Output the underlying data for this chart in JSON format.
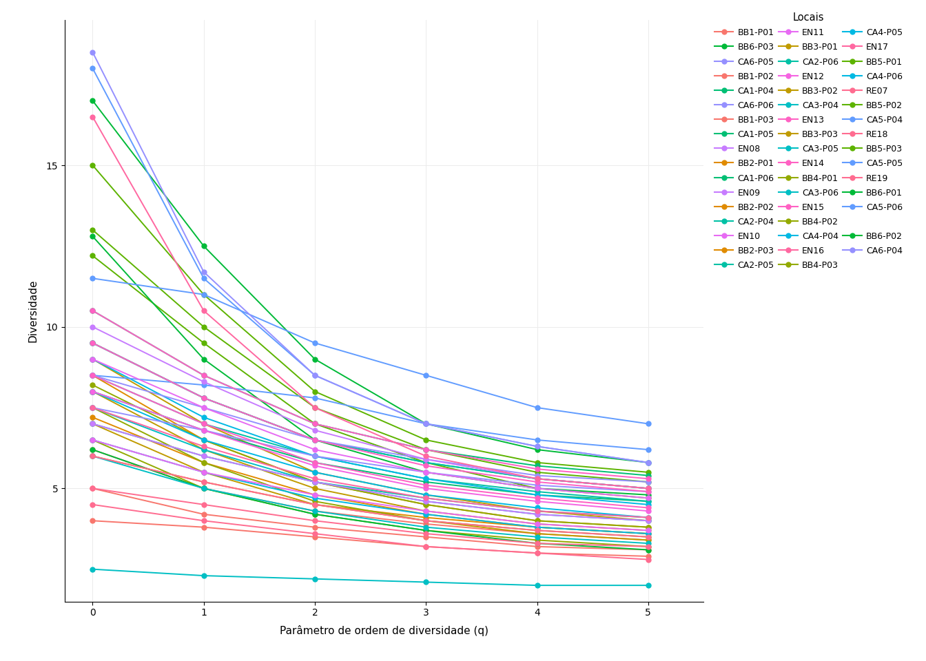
{
  "title": "",
  "xlabel": "Parâmetro de ordem de diversidade (q)",
  "ylabel": "Diversidade",
  "legend_title": "Locais",
  "x_values": [
    0,
    1,
    2,
    3,
    4,
    5
  ],
  "series": {
    "BB1-P01": {
      "color": "#F8766D",
      "values": [
        4.0,
        3.8,
        3.5,
        3.2,
        3.0,
        2.9
      ]
    },
    "BB1-P02": {
      "color": "#F67B6A",
      "values": [
        5.0,
        4.2,
        3.8,
        3.5,
        3.2,
        3.1
      ]
    },
    "BB1-P03": {
      "color": "#E88A6A",
      "values": [
        6.2,
        5.0,
        4.3,
        3.9,
        3.6,
        3.4
      ]
    },
    "BB2-P01": {
      "color": "#DC8B00",
      "values": [
        6.0,
        5.2,
        4.5,
        4.1,
        3.8,
        3.6
      ]
    },
    "BB2-P02": {
      "color": "#D08B00",
      "values": [
        7.2,
        5.8,
        4.8,
        4.2,
        3.8,
        3.6
      ]
    },
    "BB2-P03": {
      "color": "#C89000",
      "values": [
        8.5,
        6.5,
        5.2,
        4.5,
        4.0,
        3.8
      ]
    },
    "BB3-P01": {
      "color": "#BC9700",
      "values": [
        7.0,
        5.5,
        4.5,
        4.0,
        3.6,
        3.4
      ]
    },
    "BB3-P02": {
      "color": "#AE9B00",
      "values": [
        8.0,
        6.2,
        5.0,
        4.3,
        3.9,
        3.7
      ]
    },
    "BB3-P03": {
      "color": "#A09E00",
      "values": [
        9.0,
        7.0,
        5.5,
        4.8,
        4.3,
        4.0
      ]
    },
    "BB4-P01": {
      "color": "#8EA500",
      "values": [
        6.5,
        5.0,
        4.2,
        3.7,
        3.4,
        3.2
      ]
    },
    "BB4-P02": {
      "color": "#7CAA00",
      "values": [
        7.5,
        5.8,
        4.6,
        4.0,
        3.7,
        3.5
      ]
    },
    "BB4-P03": {
      "color": "#6AAF00",
      "values": [
        8.2,
        6.5,
        5.2,
        4.5,
        4.0,
        3.8
      ]
    },
    "BB5-P01": {
      "color": "#4DB400",
      "values": [
        12.2,
        9.5,
        7.0,
        5.8,
        5.0,
        4.7
      ]
    },
    "BB5-P02": {
      "color": "#35B800",
      "values": [
        13.0,
        10.0,
        7.5,
        6.2,
        5.5,
        5.2
      ]
    },
    "BB5-P03": {
      "color": "#1BBC00",
      "values": [
        15.0,
        11.0,
        8.0,
        6.5,
        5.8,
        5.5
      ]
    },
    "BB6-P01": {
      "color": "#00BA38",
      "values": [
        12.8,
        9.0,
        6.5,
        5.5,
        5.0,
        4.8
      ]
    },
    "BB6-P02": {
      "color": "#00BA20",
      "values": [
        17.0,
        12.5,
        9.0,
        7.0,
        6.2,
        5.8
      ]
    },
    "BB6-P03": {
      "color": "#00BA50",
      "values": [
        6.2,
        5.0,
        4.2,
        3.7,
        3.3,
        3.1
      ]
    },
    "CA1-P04": {
      "color": "#00BF74",
      "values": [
        8.0,
        6.8,
        5.8,
        5.2,
        4.8,
        4.6
      ]
    },
    "CA1-P05": {
      "color": "#00BF85",
      "values": [
        9.5,
        7.8,
        6.5,
        5.8,
        5.3,
        5.0
      ]
    },
    "CA1-P06": {
      "color": "#00BF95",
      "values": [
        10.5,
        8.5,
        7.0,
        6.2,
        5.7,
        5.4
      ]
    },
    "CA2-P04": {
      "color": "#00C1A5",
      "values": [
        7.0,
        6.0,
        5.2,
        4.7,
        4.3,
        4.1
      ]
    },
    "CA2-P05": {
      "color": "#00C1B0",
      "values": [
        8.5,
        7.0,
        6.0,
        5.3,
        4.9,
        4.6
      ]
    },
    "CA2-P06": {
      "color": "#00C1BB",
      "values": [
        9.5,
        7.8,
        6.5,
        5.8,
        5.3,
        5.0
      ]
    },
    "CA3-P04": {
      "color": "#00BFC4",
      "values": [
        2.5,
        2.3,
        2.2,
        2.1,
        2.0,
        2.0
      ]
    },
    "CA3-P05": {
      "color": "#00BCCD",
      "values": [
        6.0,
        5.0,
        4.3,
        3.8,
        3.5,
        3.3
      ]
    },
    "CA3-P06": {
      "color": "#00B9D8",
      "values": [
        7.5,
        6.2,
        5.2,
        4.6,
        4.2,
        4.0
      ]
    },
    "CA4-P04": {
      "color": "#00B5E0",
      "values": [
        6.5,
        5.5,
        4.7,
        4.2,
        3.8,
        3.6
      ]
    },
    "CA4-P05": {
      "color": "#00B0E8",
      "values": [
        8.0,
        6.5,
        5.5,
        4.8,
        4.4,
        4.1
      ]
    },
    "CA4-P06": {
      "color": "#00ABEE",
      "values": [
        9.0,
        7.2,
        6.0,
        5.3,
        4.8,
        4.5
      ]
    },
    "CA5-P04": {
      "color": "#35A5F5",
      "values": [
        8.5,
        8.2,
        7.8,
        7.0,
        6.5,
        6.2
      ]
    },
    "CA5-P05": {
      "color": "#619CFF",
      "values": [
        11.5,
        11.0,
        9.5,
        8.5,
        7.5,
        7.0
      ]
    },
    "CA5-P06": {
      "color": "#619CFF",
      "values": [
        18.0,
        11.5,
        8.5,
        7.0,
        6.3,
        5.8
      ]
    },
    "CA6-P04": {
      "color": "#9590FF",
      "values": [
        18.5,
        11.7,
        8.5,
        7.0,
        6.3,
        5.8
      ]
    },
    "CA6-P05": {
      "color": "#A08AFF",
      "values": [
        7.5,
        6.8,
        6.0,
        5.5,
        5.1,
        4.9
      ]
    },
    "CA6-P06": {
      "color": "#AB85FF",
      "values": [
        8.5,
        7.5,
        6.5,
        5.9,
        5.4,
        5.2
      ]
    },
    "EN08": {
      "color": "#C77CFF",
      "values": [
        10.0,
        8.3,
        6.8,
        5.9,
        5.3,
        5.0
      ]
    },
    "EN09": {
      "color": "#CC78FF",
      "values": [
        7.0,
        6.0,
        5.2,
        4.6,
        4.2,
        4.0
      ]
    },
    "EN10": {
      "color": "#D874F5",
      "values": [
        6.5,
        5.5,
        4.8,
        4.3,
        3.9,
        3.7
      ]
    },
    "EN11": {
      "color": "#E070EE",
      "values": [
        9.0,
        7.5,
        6.2,
        5.5,
        5.0,
        4.7
      ]
    },
    "EN12": {
      "color": "#E86CE5",
      "values": [
        8.0,
        6.8,
        5.7,
        5.0,
        4.6,
        4.3
      ]
    },
    "EN13": {
      "color": "#F068DA",
      "values": [
        8.5,
        7.0,
        5.8,
        5.1,
        4.7,
        4.4
      ]
    },
    "EN14": {
      "color": "#F564CF",
      "values": [
        9.5,
        7.8,
        6.5,
        5.7,
        5.2,
        4.9
      ]
    },
    "EN15": {
      "color": "#F860C4",
      "values": [
        10.5,
        8.5,
        7.0,
        6.2,
        5.6,
        5.3
      ]
    },
    "EN16": {
      "color": "#F85CB8",
      "values": [
        7.5,
        6.3,
        5.3,
        4.7,
        4.3,
        4.1
      ]
    },
    "EN17": {
      "color": "#F858AA",
      "values": [
        16.5,
        10.5,
        7.5,
        6.0,
        5.3,
        5.0
      ]
    },
    "RE07": {
      "color": "#F8549C",
      "values": [
        6.0,
        5.2,
        4.5,
        4.0,
        3.7,
        3.5
      ]
    },
    "RE18": {
      "color": "#F85090",
      "values": [
        5.0,
        4.5,
        4.0,
        3.6,
        3.3,
        3.2
      ]
    },
    "RE19": {
      "color": "#F84C84",
      "values": [
        4.5,
        4.0,
        3.6,
        3.2,
        3.0,
        2.8
      ]
    }
  },
  "legend_rows": [
    [
      "BB1-P01",
      "BB6-P03",
      "CA6-P05"
    ],
    [
      "BB1-P02",
      "CA1-P04",
      "CA6-P06"
    ],
    [
      "BB1-P03",
      "CA1-P05",
      "EN08"
    ],
    [
      "BB2-P01",
      "CA1-P06",
      "EN09"
    ],
    [
      "BB2-P02",
      "CA2-P04",
      "EN10"
    ],
    [
      "BB2-P03",
      "CA2-P05",
      "EN11"
    ],
    [
      "BB3-P01",
      "CA2-P06",
      "EN12"
    ],
    [
      "BB3-P02",
      "CA3-P04",
      "EN13"
    ],
    [
      "BB3-P03",
      "CA3-P05",
      "EN14"
    ],
    [
      "BB4-P01",
      "CA3-P06",
      "EN15"
    ],
    [
      "BB4-P02",
      "CA4-P04",
      "EN16"
    ],
    [
      "BB4-P03",
      "CA4-P05",
      "EN17"
    ],
    [
      "BB5-P01",
      "CA4-P06",
      "RE07"
    ],
    [
      "BB5-P02",
      "CA5-P04",
      "RE18"
    ],
    [
      "BB5-P03",
      "CA5-P05",
      "RE19"
    ],
    [
      "BB6-P01",
      "CA5-P06",
      null
    ],
    [
      "BB6-P02",
      "CA6-P04",
      null
    ]
  ],
  "ylim": [
    1.5,
    19.5
  ],
  "yticks": [
    5,
    10,
    15
  ],
  "xticks": [
    0,
    1,
    2,
    3,
    4,
    5
  ],
  "bg_color": "#FFFFFF",
  "grid_color": "#EBEBEB",
  "marker_size": 5,
  "linewidth": 1.4
}
